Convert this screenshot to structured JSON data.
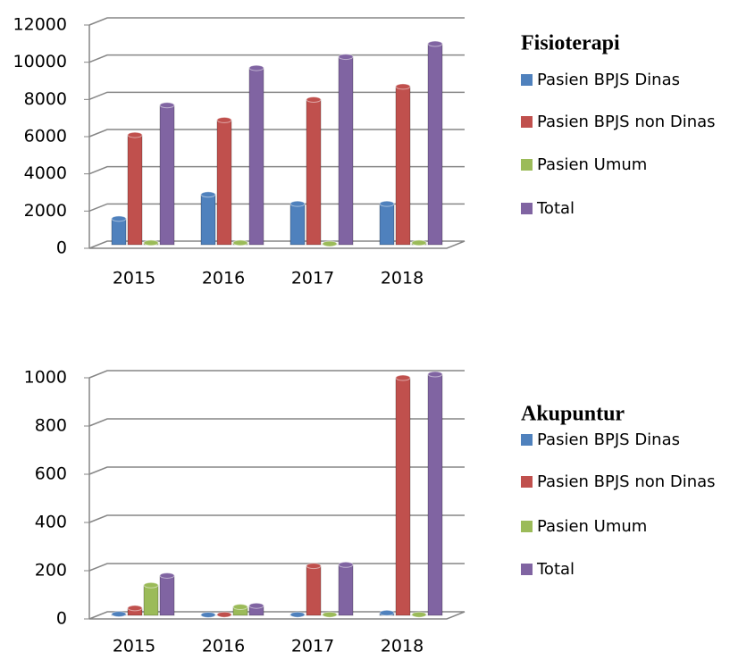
{
  "chart_data": [
    {
      "type": "bar",
      "title": "Fisioterapi",
      "categories": [
        "2015",
        "2016",
        "2017",
        "2018"
      ],
      "series": [
        {
          "name": "Pasien BPJS Dinas",
          "color": "#4f81bd",
          "values": [
            1400,
            2700,
            2200,
            2200
          ]
        },
        {
          "name": "Pasien BPJS non Dinas",
          "color": "#c0504d",
          "values": [
            5900,
            6700,
            7800,
            8500
          ]
        },
        {
          "name": "Pasien Umum",
          "color": "#9bbb59",
          "values": [
            100,
            100,
            50,
            100
          ]
        },
        {
          "name": "Total",
          "color": "#8064a2",
          "values": [
            7500,
            9500,
            10100,
            10800
          ]
        }
      ],
      "ylim": [
        0,
        12000
      ],
      "yticks": [
        0,
        2000,
        4000,
        6000,
        8000,
        10000,
        12000
      ],
      "grid": true,
      "legend": "right"
    },
    {
      "type": "bar",
      "title": "Akupuntur",
      "categories": [
        "2015",
        "2016",
        "2017",
        "2018"
      ],
      "series": [
        {
          "name": "Pasien BPJS Dinas",
          "color": "#4f81bd",
          "values": [
            5,
            2,
            3,
            10
          ]
        },
        {
          "name": "Pasien BPJS non Dinas",
          "color": "#c0504d",
          "values": [
            30,
            3,
            205,
            985
          ]
        },
        {
          "name": "Pasien Umum",
          "color": "#9bbb59",
          "values": [
            125,
            35,
            3,
            3
          ]
        },
        {
          "name": "Total",
          "color": "#8064a2",
          "values": [
            165,
            40,
            210,
            1000
          ]
        }
      ],
      "ylim": [
        0,
        1000
      ],
      "yticks": [
        0,
        200,
        400,
        600,
        800,
        1000
      ],
      "grid": true,
      "legend": "right"
    }
  ]
}
